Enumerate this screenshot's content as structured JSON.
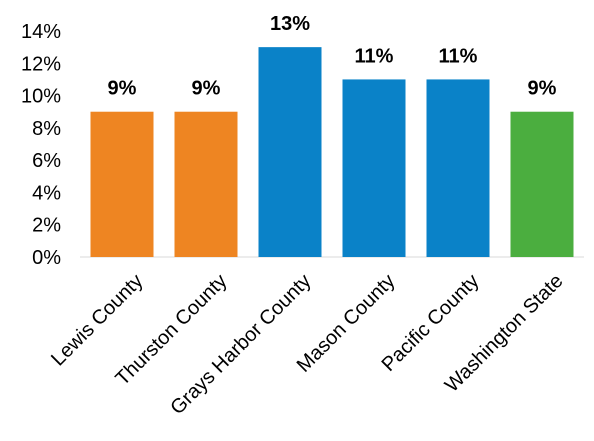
{
  "chart_data": {
    "type": "bar",
    "title": "",
    "xlabel": "",
    "ylabel": "",
    "ylim": [
      0,
      14
    ],
    "yticks": [
      0,
      2,
      4,
      6,
      8,
      10,
      12,
      14
    ],
    "ytick_labels": [
      "0%",
      "2%",
      "4%",
      "6%",
      "8%",
      "10%",
      "12%",
      "14%"
    ],
    "grid": false,
    "legend": "none",
    "categories": [
      "Lewis County",
      "Thurston County",
      "Grays Harbor County",
      "Mason County",
      "Pacific County",
      "Washington State"
    ],
    "values": [
      9,
      9,
      13,
      11,
      11,
      9
    ],
    "value_labels": [
      "9%",
      "9%",
      "13%",
      "11%",
      "11%",
      "9%"
    ],
    "bar_colors": [
      "#EE8522",
      "#EE8522",
      "#0A82C8",
      "#0A82C8",
      "#0A82C8",
      "#4BAE3F"
    ]
  }
}
